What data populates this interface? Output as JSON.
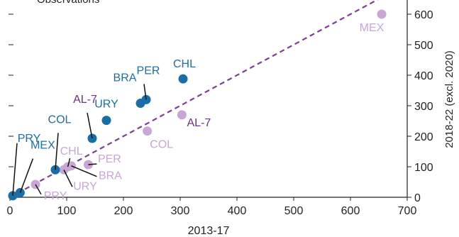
{
  "chart_data": {
    "type": "scatter",
    "title": "",
    "xlabel": "2013-17",
    "ylabel": "2018-22 (excl. 2020)",
    "top_label": "Observations",
    "xlim": [
      0,
      700
    ],
    "ylim": [
      0,
      680
    ],
    "x_ticks": [
      0,
      100,
      200,
      300,
      400,
      500,
      600,
      700
    ],
    "y_ticks": [
      0,
      100,
      200,
      300,
      400,
      500,
      600
    ],
    "grid": false,
    "reference_line": {
      "name": "45-degree line",
      "slope": 1,
      "intercept": 0,
      "style": "dashed",
      "color": "#7b3f98"
    },
    "colors": {
      "dark": "#1a6ea8",
      "light": "#c9a6d6",
      "avg_dark": "#6f2d8f",
      "avg_light": "#6f2d8f"
    },
    "series": [
      {
        "name": "dark",
        "color": "#1a6ea8",
        "label_color": "#1a6ea8",
        "points": [
          {
            "label": "CHL",
            "x": 305,
            "y": 388
          },
          {
            "label": "PER",
            "x": 240,
            "y": 320
          },
          {
            "label": "BRA",
            "x": 230,
            "y": 308
          },
          {
            "label": "URY",
            "x": 170,
            "y": 252
          },
          {
            "label": "AL-7",
            "x": 145,
            "y": 193
          },
          {
            "label": "COL",
            "x": 80,
            "y": 90
          },
          {
            "label": "MEX",
            "x": 18,
            "y": 15
          },
          {
            "label": "PRY",
            "x": 5,
            "y": 5
          }
        ]
      },
      {
        "name": "light",
        "color": "#c9a6d6",
        "label_color": "#c9a6d6",
        "points": [
          {
            "label": "MEX",
            "x": 655,
            "y": 600
          },
          {
            "label": "AL-7",
            "x": 303,
            "y": 270
          },
          {
            "label": "COL",
            "x": 242,
            "y": 217
          },
          {
            "label": "PER",
            "x": 138,
            "y": 107
          },
          {
            "label": "BRA",
            "x": 108,
            "y": 103
          },
          {
            "label": "CHL",
            "x": 102,
            "y": 100
          },
          {
            "label": "URY",
            "x": 95,
            "y": 90
          },
          {
            "label": "PRY",
            "x": 45,
            "y": 42
          }
        ]
      }
    ]
  }
}
